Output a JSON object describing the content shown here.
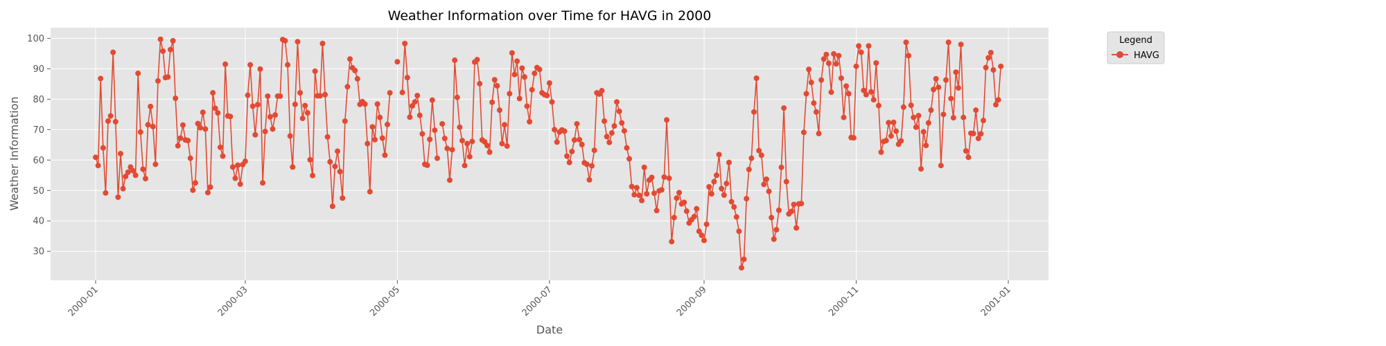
{
  "chart_data": {
    "type": "line",
    "title": "Weather Information over Time for HAVG in 2000",
    "xlabel": "Date",
    "ylabel": "Weather Information",
    "x_range": [
      "2000-01-01",
      "2000-12-31"
    ],
    "ylim": [
      20.5,
      103.5
    ],
    "y_ticks": [
      30,
      40,
      50,
      60,
      70,
      80,
      90,
      100
    ],
    "x_ticks": [
      "2000-01",
      "2000-03",
      "2000-05",
      "2000-07",
      "2000-09",
      "2000-11",
      "2001-01"
    ],
    "grid": true,
    "legend": {
      "title": "Legend",
      "position": "outside-top-right"
    },
    "colors": {
      "series": "#E24A33",
      "plot_background": "#E5E5E5",
      "grid": "#FFFFFF"
    },
    "series": [
      {
        "name": "HAVG",
        "marker": "circle",
        "start_date": "2000-01-01",
        "step": "daily",
        "values": [
          60.9,
          58.2,
          86.8,
          64.0,
          49.2,
          72.8,
          74.5,
          95.4,
          72.6,
          47.8,
          62.1,
          50.6,
          54.6,
          56.0,
          57.7,
          56.5,
          55.0,
          88.5,
          69.2,
          57.0,
          53.9,
          71.6,
          77.6,
          71.0,
          58.6,
          86.0,
          99.7,
          95.8,
          87.1,
          87.3,
          96.3,
          99.2,
          80.3,
          64.7,
          67.2,
          71.5,
          66.6,
          66.4,
          60.6,
          50.1,
          52.5,
          72.0,
          70.6,
          75.7,
          70.2,
          49.3,
          51.1,
          82.1,
          77.0,
          75.5,
          64.2,
          61.3,
          91.5,
          74.5,
          74.3,
          57.7,
          54.0,
          58.3,
          52.1,
          58.5,
          59.6,
          81.3,
          91.3,
          77.7,
          68.3,
          78.2,
          89.9,
          52.5,
          69.4,
          81.0,
          74.2,
          70.2,
          74.8,
          81.0,
          81.0,
          99.6,
          99.2,
          91.3,
          67.9,
          57.7,
          78.3,
          98.9,
          82.1,
          73.7,
          77.9,
          75.5,
          60.1,
          54.9,
          89.2,
          81.1,
          81.1,
          98.3,
          81.5,
          67.6,
          59.4,
          44.8,
          57.9,
          62.9,
          56.2,
          47.5,
          72.8,
          84.1,
          93.2,
          90.3,
          89.4,
          86.7,
          78.3,
          79.2,
          78.4,
          65.4,
          49.6,
          70.9,
          66.7,
          78.4,
          74.0,
          67.2,
          61.6,
          71.7,
          82.1,
          null,
          null,
          92.3,
          null,
          82.2,
          98.3,
          87.1,
          74.1,
          77.8,
          79.1,
          81.2,
          74.7,
          68.6,
          58.6,
          58.3,
          66.8,
          79.7,
          69.8,
          60.6,
          null,
          71.9,
          67.1,
          63.8,
          53.4,
          63.4,
          92.8,
          80.6,
          70.8,
          66.4,
          58.2,
          65.4,
          61.1,
          66.1,
          92.2,
          93.0,
          85.1,
          66.6,
          66.0,
          64.8,
          62.6,
          79.0,
          86.4,
          84.4,
          76.4,
          65.4,
          71.6,
          64.6,
          81.8,
          95.2,
          88.1,
          92.5,
          80.2,
          90.2,
          87.3,
          77.7,
          72.6,
          83.1,
          88.5,
          90.4,
          89.8,
          82.1,
          81.5,
          81.2,
          85.3,
          79.1,
          70.0,
          65.9,
          69.2,
          69.9,
          69.5,
          61.3,
          59.2,
          62.8,
          66.6,
          71.9,
          66.7,
          65.1,
          59.1,
          58.6,
          53.5,
          58.1,
          63.2,
          82.1,
          81.7,
          82.8,
          72.8,
          67.7,
          65.8,
          68.9,
          71.2,
          79.1,
          76.0,
          72.2,
          69.6,
          64.0,
          60.4,
          51.3,
          48.6,
          50.9,
          48.4,
          46.7,
          57.6,
          48.9,
          53.4,
          54.3,
          49.1,
          43.4,
          49.9,
          50.2,
          54.4,
          73.2,
          54.0,
          33.2,
          41.1,
          47.5,
          49.3,
          45.6,
          46.1,
          43.2,
          39.3,
          40.4,
          41.4,
          44.0,
          36.6,
          35.3,
          33.6,
          38.9,
          51.2,
          48.9,
          52.9,
          55.0,
          61.8,
          50.6,
          48.5,
          52.3,
          59.2,
          46.3,
          44.6,
          41.3,
          36.6,
          24.6,
          27.4,
          47.3,
          56.9,
          60.6,
          75.8,
          86.9,
          63.1,
          61.6,
          52.0,
          53.7,
          49.7,
          41.1,
          34.0,
          37.1,
          43.5,
          57.6,
          77.1,
          52.9,
          42.3,
          43.1,
          45.4,
          37.7,
          45.6,
          45.7,
          69.1,
          81.8,
          89.8,
          85.5,
          78.7,
          75.8,
          68.7,
          86.3,
          93.2,
          94.7,
          91.8,
          82.3,
          94.9,
          91.6,
          94.3,
          86.9,
          74.0,
          84.3,
          81.8,
          67.4,
          67.3,
          90.8,
          97.5,
          95.4,
          82.9,
          81.5,
          97.5,
          82.4,
          79.8,
          91.9,
          77.9,
          62.6,
          66.1,
          66.4,
          72.3,
          67.9,
          72.4,
          69.5,
          65.2,
          66.3,
          77.4,
          98.7,
          94.3,
          78.0,
          74.0,
          70.8,
          74.6,
          57.1,
          69.3,
          64.8,
          72.2,
          76.4,
          83.2,
          86.7,
          83.9,
          58.2,
          75.0,
          86.3,
          98.7,
          80.2,
          73.9,
          88.9,
          83.7,
          98.0,
          74.0,
          63.0,
          60.9,
          68.8,
          68.7,
          76.4,
          67.1,
          68.6,
          73.0,
          90.4,
          93.6,
          95.3,
          89.6,
          78.2,
          79.8,
          90.8
        ]
      }
    ]
  }
}
